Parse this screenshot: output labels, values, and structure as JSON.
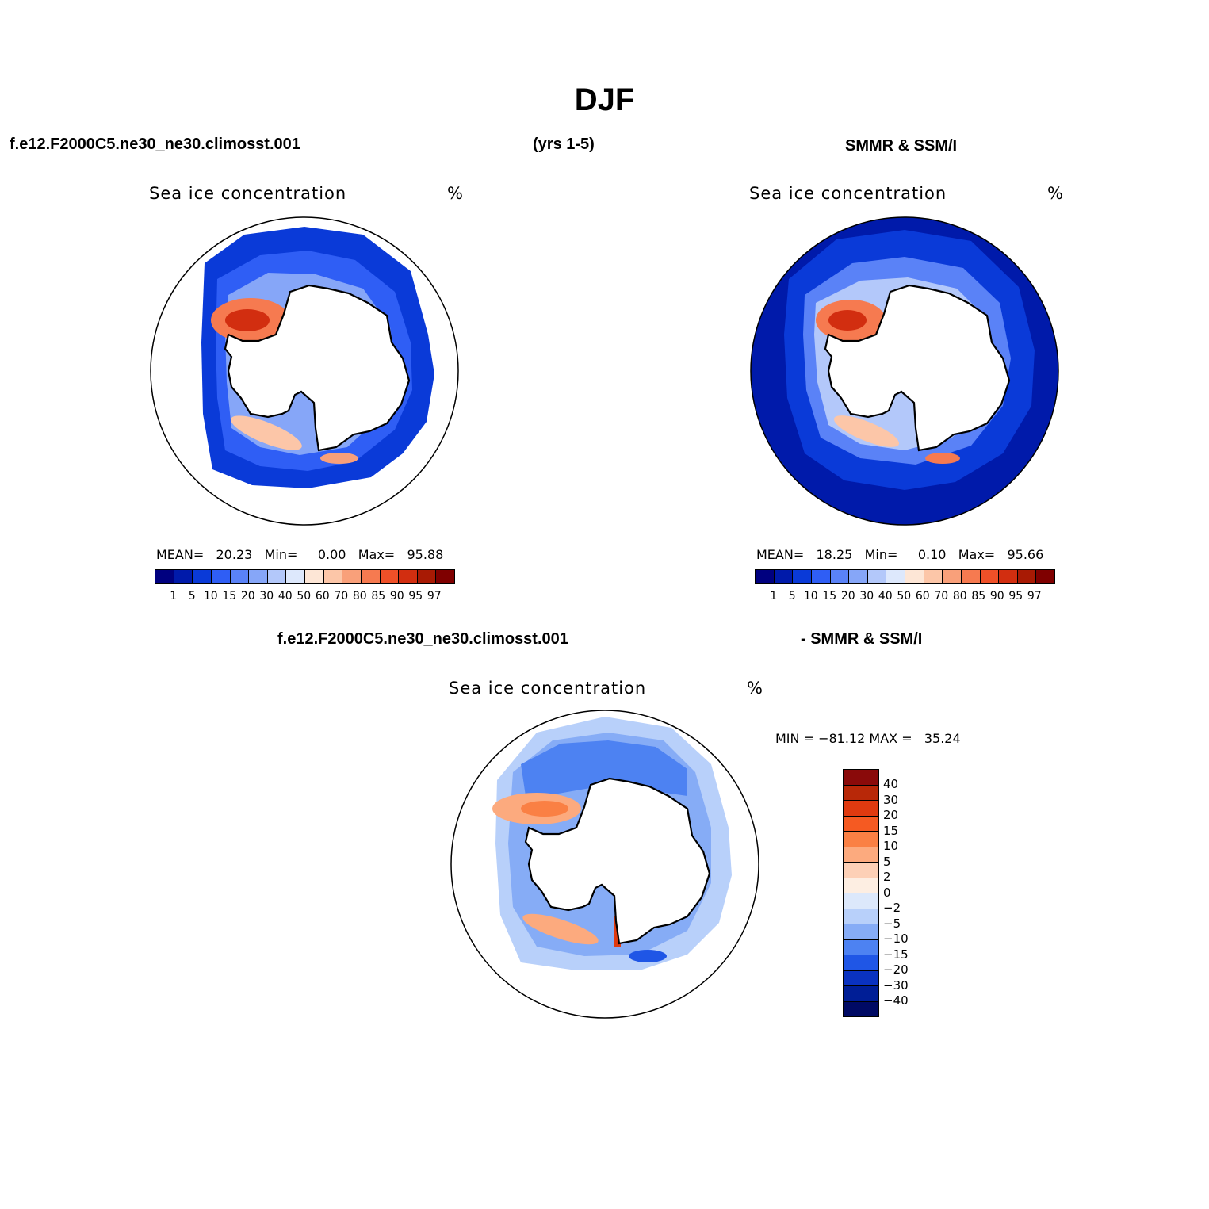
{
  "page": {
    "title": "DJF",
    "case_name": "f.e12.F2000C5.ne30_ne30.climosst.001",
    "years": "(yrs 1-5)",
    "obs_name": "SMMR & SSM/I",
    "diff_left": "f.e12.F2000C5.ne30_ne30.climosst.001",
    "diff_right": "- SMMR & SSM/I"
  },
  "chart_data": [
    {
      "type": "heatmap",
      "projection": "south-polar-stereographic",
      "title": "Sea ice concentration",
      "units": "%",
      "stats": {
        "mean_label": "MEAN=",
        "mean": "20.23",
        "min_label": "Min=",
        "min": "0.00",
        "max_label": "Max=",
        "max": "95.88"
      },
      "levels": [
        "1",
        "5",
        "10",
        "15",
        "20",
        "30",
        "40",
        "50",
        "60",
        "70",
        "80",
        "85",
        "90",
        "95",
        "97"
      ],
      "colors": [
        "#00007f",
        "#001aaa",
        "#0a3ad8",
        "#2f5ef5",
        "#5a82f7",
        "#86a6f8",
        "#b3c8fa",
        "#dde8fc",
        "#fde6d6",
        "#fcc6a8",
        "#f9a07a",
        "#f67a50",
        "#ef5028",
        "#d22e10",
        "#a81a04",
        "#7f0000"
      ],
      "legend_position": "bottom"
    },
    {
      "type": "heatmap",
      "projection": "south-polar-stereographic",
      "title": "Sea ice concentration",
      "units": "%",
      "stats": {
        "mean_label": "MEAN=",
        "mean": "18.25",
        "min_label": "Min=",
        "min": "0.10",
        "max_label": "Max=",
        "max": "95.66"
      },
      "levels": [
        "1",
        "5",
        "10",
        "15",
        "20",
        "30",
        "40",
        "50",
        "60",
        "70",
        "80",
        "85",
        "90",
        "95",
        "97"
      ],
      "colors": [
        "#00007f",
        "#001aaa",
        "#0a3ad8",
        "#2f5ef5",
        "#5a82f7",
        "#86a6f8",
        "#b3c8fa",
        "#dde8fc",
        "#fde6d6",
        "#fcc6a8",
        "#f9a07a",
        "#f67a50",
        "#ef5028",
        "#d22e10",
        "#a81a04",
        "#7f0000"
      ],
      "legend_position": "bottom"
    },
    {
      "type": "heatmap",
      "projection": "south-polar-stereographic",
      "title": "Sea ice concentration",
      "units": "%",
      "stats": {
        "min_label": "MIN =",
        "min": "−81.12",
        "max_label": "MAX =",
        "max": "35.24"
      },
      "levels": [
        "40",
        "30",
        "20",
        "15",
        "10",
        "5",
        "2",
        "0",
        "−2",
        "−5",
        "−10",
        "−15",
        "−20",
        "−30",
        "−40"
      ],
      "colors": [
        "#8a0a0a",
        "#b82808",
        "#e03a10",
        "#f55a22",
        "#fa8044",
        "#fcaa7e",
        "#fdd0b6",
        "#fdeee2",
        "#dce8fb",
        "#b8d0fa",
        "#86acf6",
        "#4d82f2",
        "#1f56e6",
        "#0a32c0",
        "#001e96",
        "#000a64"
      ],
      "legend_position": "right"
    }
  ]
}
